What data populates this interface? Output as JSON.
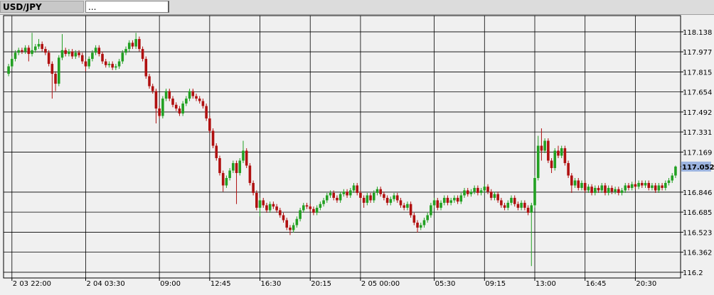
{
  "chart_data": {
    "type": "candlestick",
    "title": "USD/JPY",
    "subtitle": "...",
    "up_color": "#22a022",
    "down_color": "#b01010",
    "grid": true,
    "ylim": [
      116.154,
      118.269
    ],
    "yticks": [
      118.138,
      117.977,
      117.815,
      117.654,
      117.492,
      117.331,
      117.169,
      116.846,
      116.685,
      116.523,
      116.362,
      116.2
    ],
    "xlim": [
      -1.5,
      200.5
    ],
    "xticks": [
      {
        "value": 1,
        "label": "2 03 22:00"
      },
      {
        "value": 23,
        "label": "2 04 03:30"
      },
      {
        "value": 45,
        "label": "09:00"
      },
      {
        "value": 60,
        "label": "12:45"
      },
      {
        "value": 75,
        "label": "16:30"
      },
      {
        "value": 90,
        "label": "20:15"
      },
      {
        "value": 105,
        "label": "2 05 00:00"
      },
      {
        "value": 127,
        "label": "05:30"
      },
      {
        "value": 142,
        "label": "09:15"
      },
      {
        "value": 157,
        "label": "13:00"
      },
      {
        "value": 172,
        "label": "16:45"
      },
      {
        "value": 187,
        "label": "20:30"
      }
    ],
    "last_price": 117.052,
    "open": [
      117.8,
      117.86,
      117.92,
      117.97,
      117.99,
      117.98,
      118.01,
      117.96,
      117.99,
      118.02,
      118.04,
      118.0,
      117.97,
      117.88,
      117.8,
      117.72,
      117.93,
      117.99,
      117.96,
      117.98,
      117.94,
      117.97,
      117.95,
      117.9,
      117.86,
      117.92,
      117.97,
      118.01,
      117.96,
      117.9,
      117.87,
      117.88,
      117.85,
      117.86,
      117.9,
      117.97,
      118.0,
      118.05,
      118.02,
      118.08,
      118.0,
      117.92,
      117.78,
      117.7,
      117.66,
      117.52,
      117.46,
      117.6,
      117.66,
      117.6,
      117.55,
      117.52,
      117.48,
      117.56,
      117.6,
      117.66,
      117.62,
      117.6,
      117.58,
      117.54,
      117.44,
      117.34,
      117.22,
      117.12,
      117.0,
      116.9,
      116.96,
      117.02,
      117.08,
      117.0,
      117.1,
      117.18,
      117.06,
      116.92,
      116.84,
      116.72,
      116.78,
      116.74,
      116.7,
      116.75,
      116.73,
      116.7,
      116.66,
      116.62,
      116.56,
      116.54,
      116.58,
      116.63,
      116.7,
      116.74,
      116.73,
      116.71,
      116.68,
      116.72,
      116.75,
      116.78,
      116.82,
      116.84,
      116.8,
      116.78,
      116.83,
      116.85,
      116.82,
      116.86,
      116.9,
      116.84,
      116.8,
      116.76,
      116.82,
      116.78,
      116.84,
      116.87,
      116.83,
      116.8,
      116.76,
      116.79,
      116.82,
      116.78,
      116.74,
      116.72,
      116.75,
      116.66,
      116.6,
      116.56,
      116.58,
      116.62,
      116.66,
      116.74,
      116.78,
      116.72,
      116.76,
      116.8,
      116.76,
      116.78,
      116.8,
      116.77,
      116.82,
      116.86,
      116.83,
      116.85,
      116.88,
      116.84,
      116.86,
      116.89,
      116.85,
      116.8,
      116.83,
      116.78,
      116.74,
      116.72,
      116.76,
      116.8,
      116.75,
      116.72,
      116.76,
      116.72,
      116.68,
      116.74,
      116.96,
      117.22,
      117.18,
      117.26,
      117.1,
      117.04,
      117.18,
      117.14,
      117.2,
      117.08,
      116.98,
      116.9,
      116.94,
      116.88,
      116.92,
      116.86,
      116.89,
      116.84,
      116.88,
      116.86,
      116.9,
      116.84,
      116.88,
      116.85,
      116.87,
      116.84,
      116.86,
      116.9,
      116.88,
      116.91,
      116.89,
      116.92,
      116.9,
      116.92,
      116.88,
      116.9,
      116.86,
      116.9,
      116.88,
      116.92,
      116.94,
      116.98
    ],
    "high": [
      117.88,
      117.94,
      117.99,
      118.01,
      118.01,
      118.03,
      118.03,
      118.13,
      118.04,
      118.08,
      118.06,
      118.02,
      117.99,
      117.9,
      117.82,
      117.95,
      118.12,
      118.01,
      118.0,
      118.0,
      117.99,
      117.99,
      117.97,
      117.92,
      117.94,
      117.99,
      118.03,
      118.03,
      117.98,
      117.92,
      117.9,
      117.9,
      117.88,
      117.92,
      117.99,
      118.02,
      118.07,
      118.07,
      118.13,
      118.1,
      118.02,
      117.94,
      117.8,
      117.72,
      117.68,
      117.54,
      117.62,
      117.68,
      117.68,
      117.62,
      117.57,
      117.54,
      117.58,
      117.62,
      117.68,
      117.68,
      117.64,
      117.62,
      117.6,
      117.56,
      117.46,
      117.36,
      117.24,
      117.14,
      117.02,
      116.98,
      117.04,
      117.1,
      117.1,
      117.12,
      117.26,
      117.2,
      117.08,
      116.94,
      116.86,
      116.8,
      116.8,
      116.76,
      116.77,
      116.77,
      116.75,
      116.72,
      116.68,
      116.64,
      116.58,
      116.6,
      116.65,
      116.72,
      116.76,
      116.76,
      116.75,
      116.73,
      116.74,
      116.77,
      116.8,
      116.84,
      116.86,
      116.86,
      116.82,
      116.85,
      116.87,
      116.87,
      116.88,
      116.92,
      116.92,
      116.86,
      116.82,
      116.84,
      116.84,
      116.86,
      116.89,
      116.89,
      116.85,
      116.82,
      116.81,
      116.84,
      116.84,
      116.8,
      116.76,
      116.77,
      116.77,
      116.68,
      116.62,
      116.6,
      116.64,
      116.68,
      116.76,
      116.8,
      116.8,
      116.78,
      116.82,
      116.82,
      116.8,
      116.82,
      116.82,
      116.84,
      116.88,
      116.88,
      116.87,
      116.9,
      116.9,
      116.88,
      116.91,
      116.91,
      116.87,
      116.85,
      116.85,
      116.8,
      116.76,
      116.78,
      116.82,
      116.82,
      116.77,
      116.78,
      116.78,
      116.74,
      116.76,
      116.98,
      117.3,
      117.36,
      117.28,
      117.28,
      117.12,
      117.2,
      117.22,
      117.22,
      117.22,
      117.1,
      117.0,
      116.96,
      116.96,
      116.94,
      116.94,
      116.91,
      116.91,
      116.9,
      116.9,
      116.92,
      116.92,
      116.9,
      116.9,
      116.89,
      116.89,
      116.88,
      116.92,
      116.92,
      116.93,
      116.93,
      116.94,
      116.94,
      116.94,
      116.94,
      116.92,
      116.92,
      116.92,
      116.92,
      116.94,
      116.96,
      117.0,
      117.06
    ],
    "low": [
      117.78,
      117.84,
      117.9,
      117.95,
      117.96,
      117.96,
      117.9,
      117.94,
      117.97,
      118.0,
      117.98,
      117.95,
      117.86,
      117.6,
      117.66,
      117.7,
      117.91,
      117.94,
      117.94,
      117.92,
      117.92,
      117.93,
      117.88,
      117.82,
      117.84,
      117.9,
      117.95,
      117.94,
      117.88,
      117.85,
      117.85,
      117.83,
      117.83,
      117.84,
      117.88,
      117.95,
      117.98,
      118.0,
      118.0,
      117.98,
      117.9,
      117.76,
      117.68,
      117.64,
      117.4,
      117.44,
      117.44,
      117.58,
      117.58,
      117.53,
      117.5,
      117.46,
      117.46,
      117.54,
      117.58,
      117.6,
      117.58,
      117.56,
      117.52,
      117.42,
      117.32,
      117.2,
      117.1,
      116.98,
      116.85,
      116.88,
      116.94,
      117.0,
      116.75,
      116.98,
      117.08,
      117.04,
      116.9,
      116.82,
      116.7,
      116.65,
      116.72,
      116.68,
      116.68,
      116.71,
      116.68,
      116.64,
      116.6,
      116.54,
      116.5,
      116.52,
      116.56,
      116.61,
      116.68,
      116.71,
      116.69,
      116.66,
      116.66,
      116.7,
      116.73,
      116.76,
      116.8,
      116.78,
      116.76,
      116.76,
      116.81,
      116.8,
      116.8,
      116.84,
      116.82,
      116.78,
      116.72,
      116.74,
      116.76,
      116.76,
      116.82,
      116.81,
      116.78,
      116.74,
      116.74,
      116.77,
      116.76,
      116.72,
      116.7,
      116.7,
      116.64,
      116.58,
      116.52,
      116.54,
      116.56,
      116.6,
      116.64,
      116.72,
      116.7,
      116.7,
      116.74,
      116.74,
      116.74,
      116.76,
      116.75,
      116.75,
      116.8,
      116.81,
      116.81,
      116.83,
      116.82,
      116.82,
      116.84,
      116.83,
      116.78,
      116.78,
      116.76,
      116.72,
      116.7,
      116.7,
      116.74,
      116.73,
      116.7,
      116.7,
      116.7,
      116.66,
      116.25,
      116.72,
      116.94,
      117.1,
      117.16,
      117.08,
      117.0,
      117.02,
      117.12,
      117.12,
      117.06,
      116.96,
      116.84,
      116.88,
      116.86,
      116.86,
      116.84,
      116.84,
      116.82,
      116.82,
      116.84,
      116.84,
      116.82,
      116.82,
      116.83,
      116.83,
      116.82,
      116.82,
      116.84,
      116.86,
      116.86,
      116.87,
      116.87,
      116.88,
      116.88,
      116.86,
      116.86,
      116.84,
      116.84,
      116.86,
      116.86,
      116.9,
      116.92,
      116.96
    ],
    "close": [
      117.86,
      117.92,
      117.97,
      117.99,
      117.98,
      118.01,
      117.96,
      117.99,
      118.02,
      118.04,
      118.0,
      117.97,
      117.88,
      117.8,
      117.72,
      117.93,
      117.99,
      117.96,
      117.98,
      117.94,
      117.97,
      117.95,
      117.9,
      117.86,
      117.92,
      117.97,
      118.01,
      117.96,
      117.9,
      117.87,
      117.88,
      117.85,
      117.86,
      117.9,
      117.97,
      118.0,
      118.05,
      118.02,
      118.08,
      118.0,
      117.92,
      117.78,
      117.7,
      117.66,
      117.52,
      117.46,
      117.6,
      117.66,
      117.6,
      117.55,
      117.52,
      117.48,
      117.56,
      117.6,
      117.66,
      117.62,
      117.6,
      117.58,
      117.54,
      117.44,
      117.34,
      117.22,
      117.12,
      117.0,
      116.9,
      116.96,
      117.02,
      117.08,
      117.0,
      117.1,
      117.18,
      117.06,
      116.92,
      116.84,
      116.72,
      116.78,
      116.74,
      116.7,
      116.75,
      116.73,
      116.7,
      116.66,
      116.62,
      116.56,
      116.54,
      116.58,
      116.63,
      116.7,
      116.74,
      116.73,
      116.71,
      116.68,
      116.72,
      116.75,
      116.78,
      116.82,
      116.84,
      116.8,
      116.78,
      116.83,
      116.85,
      116.82,
      116.86,
      116.9,
      116.84,
      116.8,
      116.76,
      116.82,
      116.78,
      116.84,
      116.87,
      116.83,
      116.8,
      116.76,
      116.79,
      116.82,
      116.78,
      116.74,
      116.72,
      116.75,
      116.66,
      116.6,
      116.56,
      116.58,
      116.62,
      116.66,
      116.74,
      116.78,
      116.72,
      116.76,
      116.8,
      116.76,
      116.78,
      116.8,
      116.77,
      116.82,
      116.86,
      116.83,
      116.85,
      116.88,
      116.84,
      116.86,
      116.89,
      116.85,
      116.8,
      116.83,
      116.78,
      116.74,
      116.72,
      116.76,
      116.8,
      116.75,
      116.72,
      116.76,
      116.72,
      116.68,
      116.74,
      116.96,
      117.22,
      117.18,
      117.26,
      117.1,
      117.04,
      117.18,
      117.14,
      117.2,
      117.08,
      116.98,
      116.9,
      116.94,
      116.88,
      116.92,
      116.86,
      116.89,
      116.84,
      116.88,
      116.86,
      116.9,
      116.84,
      116.88,
      116.85,
      116.87,
      116.84,
      116.86,
      116.9,
      116.88,
      116.91,
      116.89,
      116.92,
      116.9,
      116.92,
      116.88,
      116.9,
      116.86,
      116.9,
      116.88,
      116.92,
      116.94,
      116.98,
      117.052
    ]
  }
}
